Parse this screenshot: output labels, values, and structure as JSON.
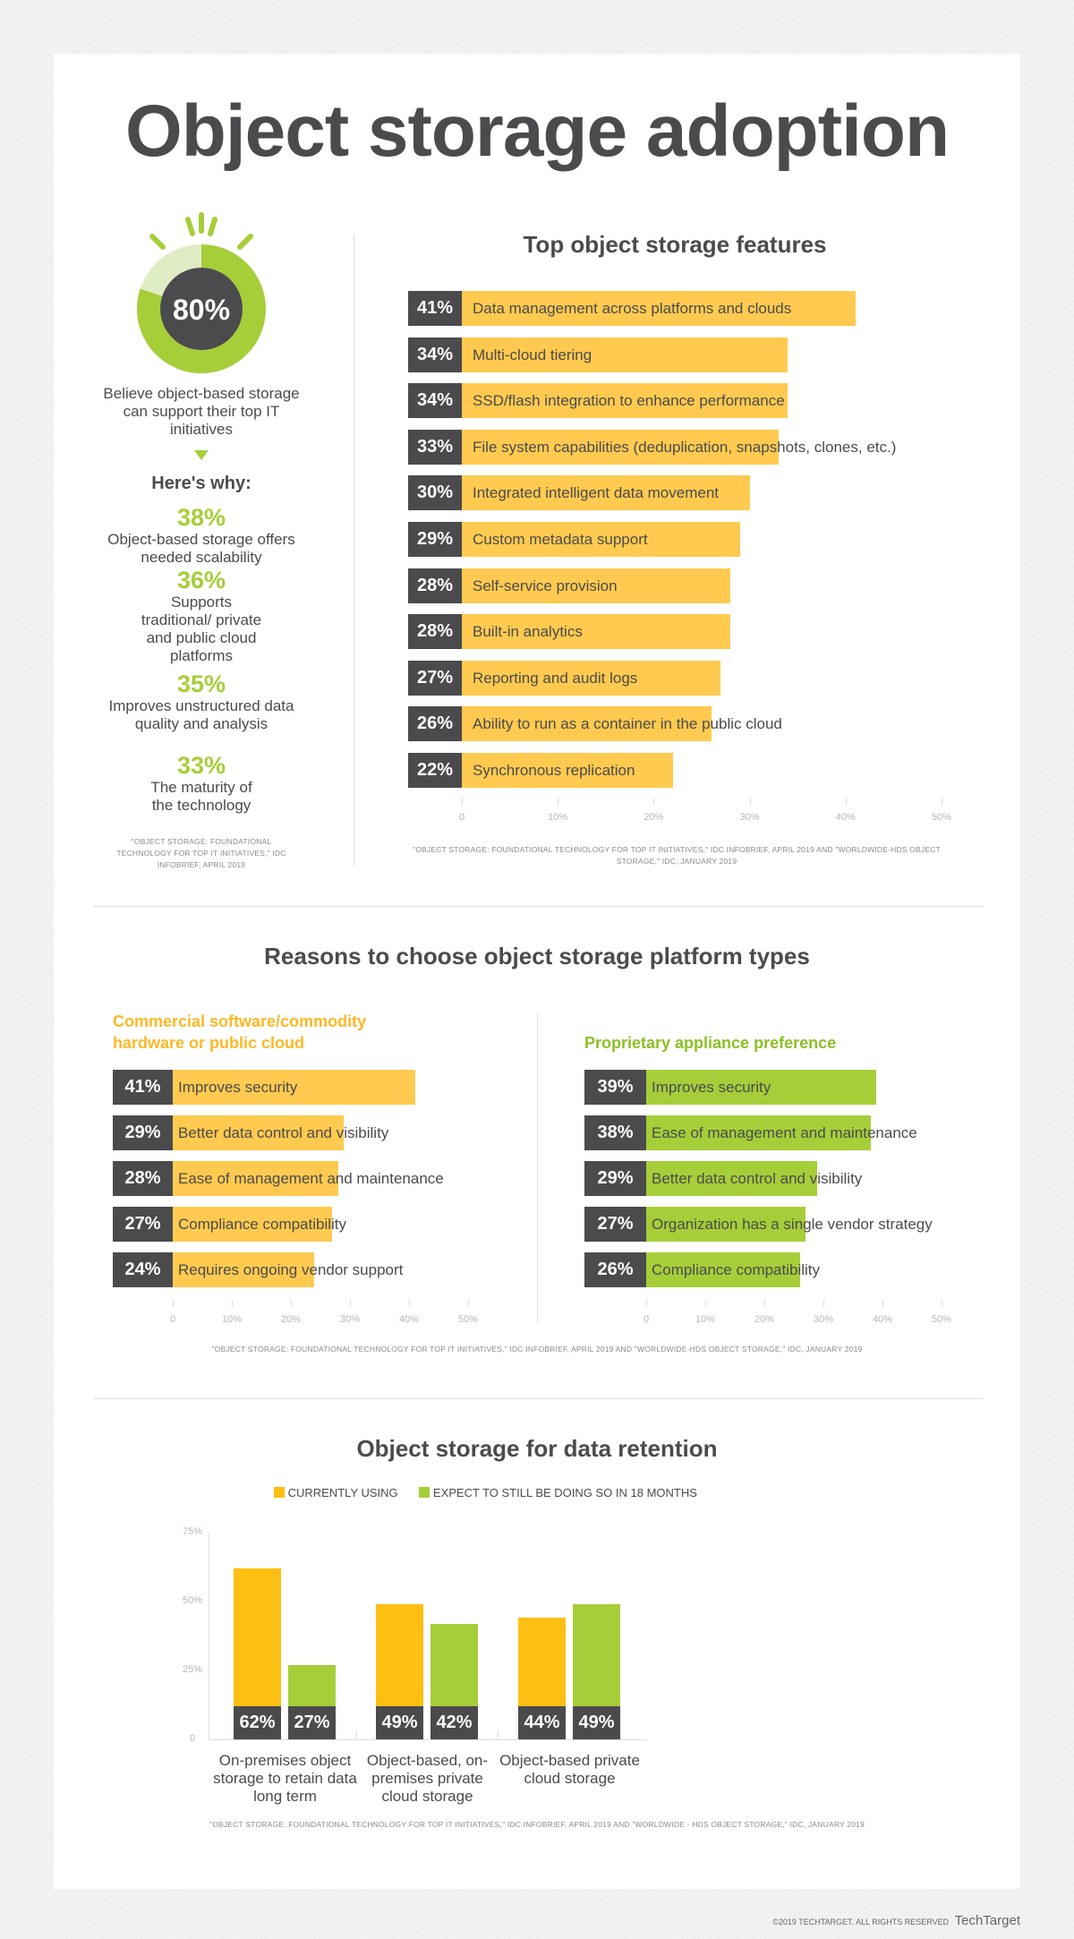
{
  "title": "Object storage adoption",
  "colors": {
    "yellow_light": "#ffca4f",
    "yellow": "#fdbf12",
    "green": "#a6ce39",
    "green_light": "#e0ecc4",
    "dark": "#4b4b4d"
  },
  "summary": {
    "donut_value": "80%",
    "donut_fraction": 0.8,
    "caption": "Believe object-based storage can support their top IT initiatives",
    "heres_why": "Here's why:",
    "reasons": [
      {
        "pct": "38%",
        "text": "Object-based storage offers needed scalability"
      },
      {
        "pct": "36%",
        "text": "Supports traditional/ private and public cloud platforms"
      },
      {
        "pct": "35%",
        "text": "Improves unstructured data quality and analysis"
      },
      {
        "pct": "33%",
        "text": "The maturity of the technology"
      }
    ],
    "source": "\"OBJECT STORAGE: FOUNDATIONAL TECHNOLOGY FOR TOP IT INITIATIVES,\" IDC INFOBRIEF, APRIL 2019"
  },
  "chart_data": [
    {
      "type": "bar",
      "orientation": "horizontal",
      "title": "Top object storage features",
      "xlim": [
        0,
        50
      ],
      "ticks": [
        "0",
        "10%",
        "20%",
        "30%",
        "40%",
        "50%"
      ],
      "categories": [
        "Data management across platforms and clouds",
        "Multi-cloud tiering",
        "SSD/flash integration to enhance performance",
        "File system capabilities (deduplication, snapshots, clones, etc.)",
        "Integrated intelligent data movement",
        "Custom metadata support",
        "Self-service provision",
        "Built-in analytics",
        "Reporting and audit logs",
        "Ability to run as a container in the public cloud",
        "Synchronous replication"
      ],
      "values": [
        41,
        34,
        34,
        33,
        30,
        29,
        28,
        28,
        27,
        26,
        22
      ],
      "source": "\"OBJECT STORAGE: FOUNDATIONAL TECHNOLOGY FOR TOP IT INITIATIVES,\" IDC INFOBRIEF, APRIL 2019 AND \"WORLDWIDE-HDS OBJECT STORAGE,\" IDC, JANUARY 2019"
    },
    {
      "type": "bar",
      "orientation": "horizontal",
      "title": "Reasons to choose object storage platform types",
      "subtitle": "Commercial software/commodity hardware or public cloud",
      "xlim": [
        0,
        50
      ],
      "ticks": [
        "0",
        "10%",
        "20%",
        "30%",
        "40%",
        "50%"
      ],
      "categories": [
        "Improves security",
        "Better data control and visibility",
        "Ease of management and maintenance",
        "Compliance compatibility",
        "Requires ongoing vendor support"
      ],
      "values": [
        41,
        29,
        28,
        27,
        24
      ]
    },
    {
      "type": "bar",
      "orientation": "horizontal",
      "subtitle": "Proprietary appliance preference",
      "xlim": [
        0,
        50
      ],
      "ticks": [
        "0",
        "10%",
        "20%",
        "30%",
        "40%",
        "50%"
      ],
      "categories": [
        "Improves security",
        "Ease of management and maintenance",
        "Better data control and visibility",
        "Organization has a single vendor strategy",
        "Compliance compatibility"
      ],
      "values": [
        39,
        38,
        29,
        27,
        26
      ],
      "source": "\"OBJECT STORAGE: FOUNDATIONAL TECHNOLOGY FOR TOP IT INITIATIVES,\" IDC INFOBRIEF, APRIL 2019 AND  \"WORLDWIDE-HDS OBJECT STORAGE,\" IDC, JANUARY 2019"
    },
    {
      "type": "bar",
      "title": "Object storage for data retention",
      "ylim": [
        0,
        75
      ],
      "ticks": [
        "0",
        "25%",
        "50%",
        "75%"
      ],
      "categories": [
        "On-premises object storage to retain data long term",
        "Object-based, on-premises private cloud storage",
        "Object-based private cloud storage"
      ],
      "series": [
        {
          "name": "CURRENTLY USING",
          "values": [
            62,
            49,
            44
          ]
        },
        {
          "name": "EXPECT TO STILL BE DOING SO IN 18 MONTHS",
          "values": [
            27,
            42,
            49
          ]
        }
      ],
      "legend": "top",
      "source": "\"OBJECT STORAGE: FOUNDATIONAL TECHNOLOGY FOR TOP IT INITIATIVES,\" IDC INFOBRIEF, APRIL 2019 AND \"WORLDWIDE - HDS OBJECT STORAGE,\" IDC, JANUARY 2019"
    }
  ],
  "footer": {
    "copyright": "©2019 TECHTARGET. ALL RIGHTS RESERVED",
    "logo": "TechTarget"
  }
}
